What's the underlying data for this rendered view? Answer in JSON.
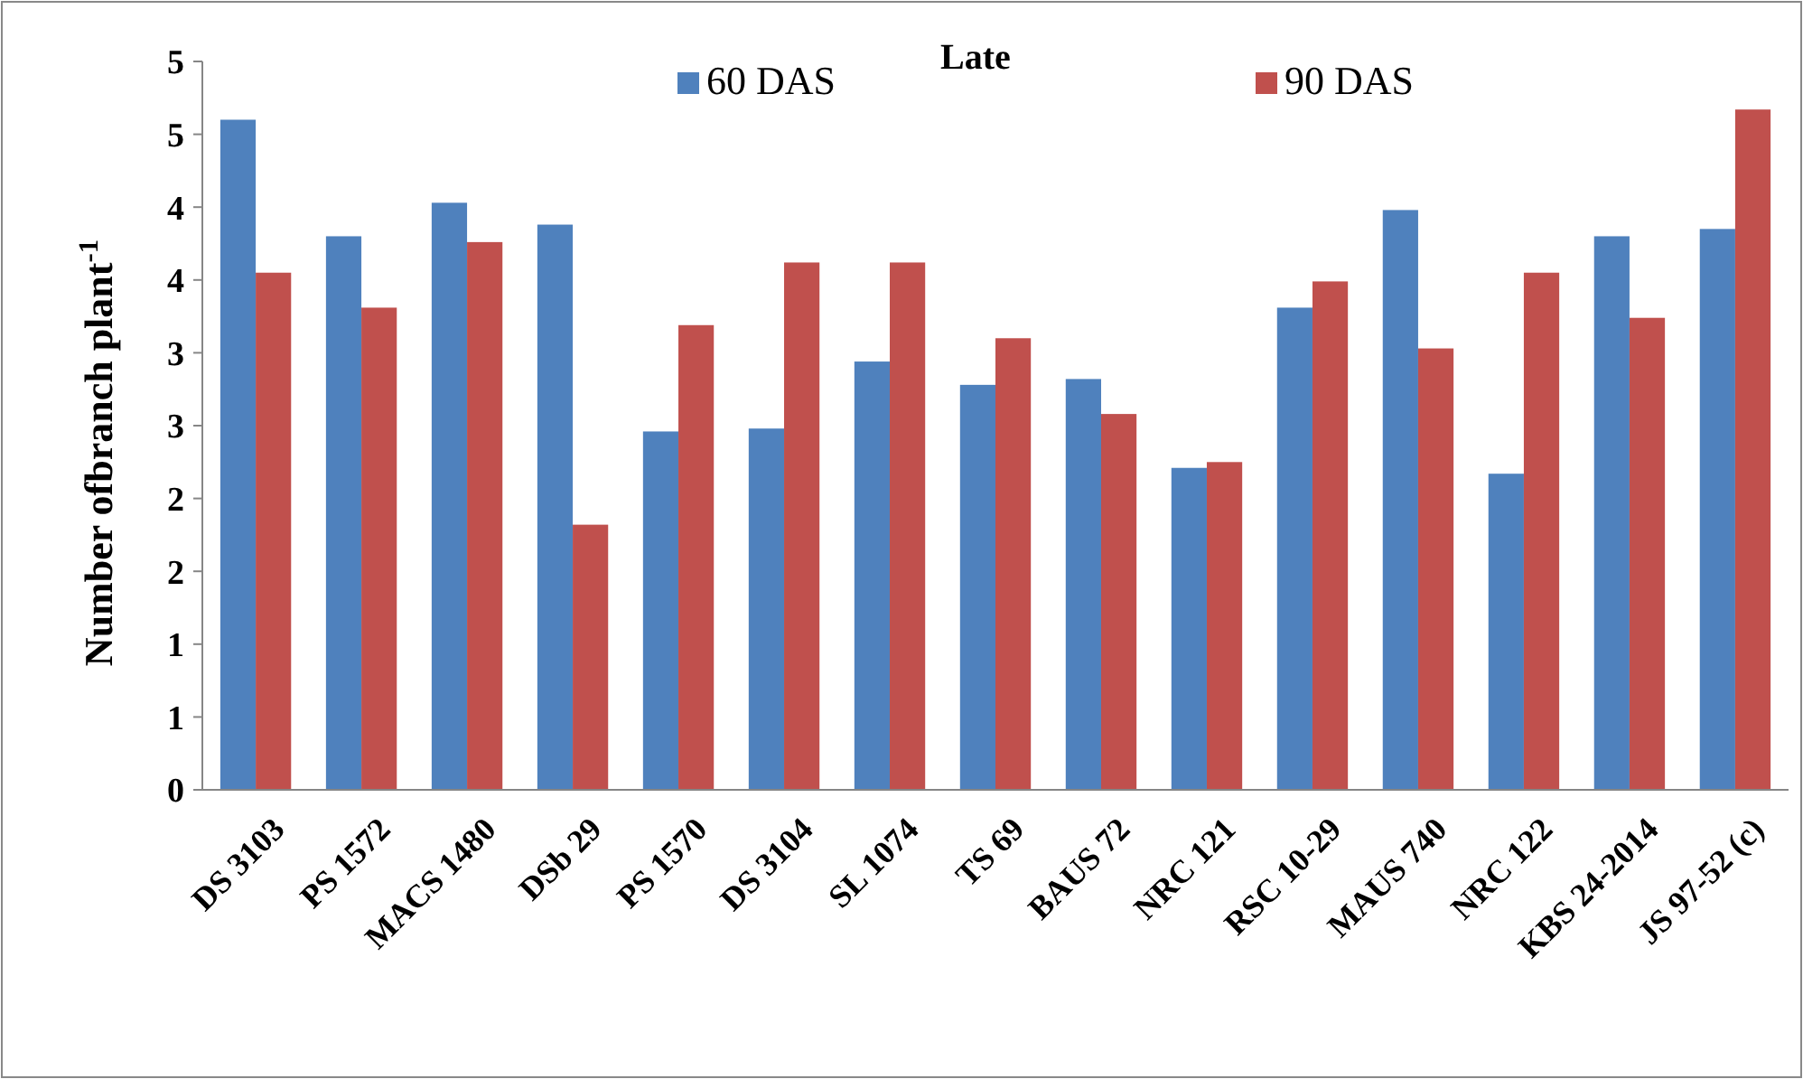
{
  "chart_data": {
    "type": "bar",
    "title": "Late",
    "ylabel": "Number ofbranch  plant$^{-1}$",
    "categories": [
      "DS 3103",
      "PS 1572",
      "MACS 1480",
      "DSb 29",
      "PS 1570",
      "DS 3104",
      "SL 1074",
      "TS 69",
      "BAUS 72",
      "NRC 121",
      "RSC 10-29",
      "MAUS 740",
      "NRC 122",
      "KBS 24-2014",
      "JS 97-52 (c)"
    ],
    "series": [
      {
        "name": "60 DAS",
        "color": "#4f81bd",
        "values": [
          4.6,
          3.8,
          4.03,
          3.88,
          2.46,
          2.48,
          2.94,
          2.78,
          2.82,
          2.21,
          3.31,
          3.98,
          2.17,
          3.8,
          3.85
        ]
      },
      {
        "name": "90 DAS",
        "color": "#c0504d",
        "values": [
          3.55,
          3.31,
          3.76,
          1.82,
          3.19,
          3.62,
          3.62,
          3.1,
          2.58,
          2.25,
          3.49,
          3.03,
          3.55,
          3.24,
          4.67
        ]
      }
    ],
    "ylim": [
      0,
      5
    ],
    "yticks": [
      {
        "value": 0,
        "label": "0"
      },
      {
        "value": 0.5,
        "label": "1"
      },
      {
        "value": 1,
        "label": "1"
      },
      {
        "value": 1.5,
        "label": "2"
      },
      {
        "value": 2,
        "label": "2"
      },
      {
        "value": 2.5,
        "label": "3"
      },
      {
        "value": 3,
        "label": "3"
      },
      {
        "value": 3.5,
        "label": "4"
      },
      {
        "value": 4,
        "label": "4"
      },
      {
        "value": 4.5,
        "label": "5"
      },
      {
        "value": 5,
        "label": "5"
      }
    ],
    "grid": false,
    "legend": "top"
  }
}
